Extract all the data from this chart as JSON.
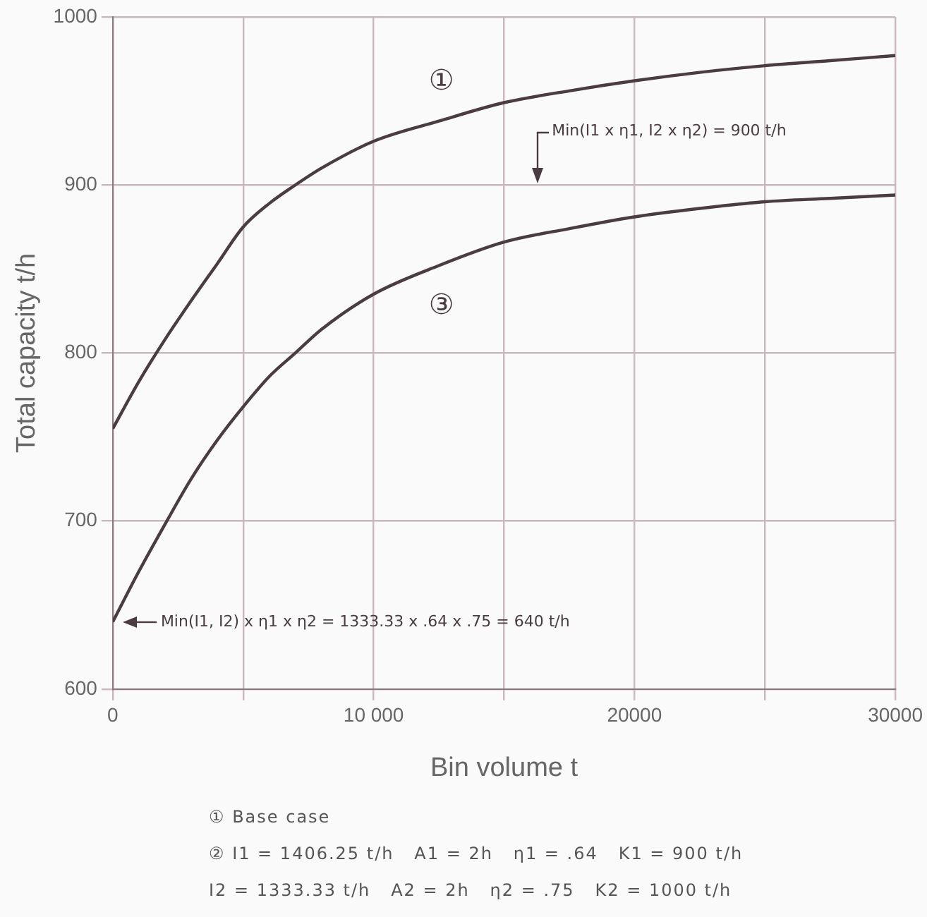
{
  "chart_data": {
    "type": "line",
    "xlabel": "Bin volume t",
    "ylabel": "Total capacity t/h",
    "x": [
      0,
      1000,
      2000,
      3000,
      4000,
      5000,
      6000,
      7000,
      8000,
      10000,
      12500,
      15000,
      17500,
      20000,
      22500,
      25000,
      27500,
      30000
    ],
    "series": [
      {
        "name": "①",
        "color": "#4a3c42",
        "values": [
          755,
          783,
          808,
          831,
          853,
          875,
          889,
          900,
          910,
          926,
          938,
          949,
          956,
          962,
          967,
          971,
          974,
          977
        ]
      },
      {
        "name": "③",
        "color": "#4a3c42",
        "values": [
          640,
          670,
          698,
          725,
          748,
          768,
          786,
          800,
          814,
          835,
          852,
          866,
          874,
          881,
          886,
          890,
          892,
          894
        ]
      }
    ],
    "xlim": [
      0,
      30000
    ],
    "ylim": [
      600,
      1000
    ],
    "xticks": [
      0,
      {
        "value": 5000,
        "label": null
      },
      {
        "value": 10000,
        "label": "10 000"
      },
      {
        "value": 15000,
        "label": null
      },
      20000,
      {
        "value": 25000,
        "label": null
      },
      30000
    ],
    "yticks": [
      600,
      700,
      800,
      900,
      1000
    ],
    "grid": true,
    "legend": false,
    "marker": "none",
    "line_style": "solid",
    "annotations": [
      "Min(I1 x η1, I2 x η2) = 900 t/h",
      "Min(I1, I2) x η1 x η2 = 1333.33 x .64 x .75 = 640 t/h",
      "① Base case",
      "② I1 = 1406.25 t/h   A1 = 2h   η1 = .64   K1 = 900 t/h",
      "I2 = 1333.33 t/h   A2 = 2h   η2 = .75   K2 = 1000 t/h"
    ]
  }
}
